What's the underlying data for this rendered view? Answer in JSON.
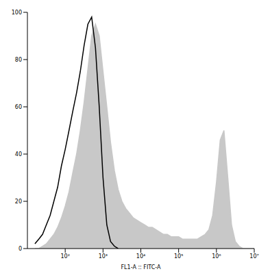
{
  "chart_data": {
    "type": "area",
    "x_label": "FL1-A :: FITC-A",
    "log": "x",
    "x": [
      15.8,
      20,
      25.1,
      31.6,
      39.8,
      50.1,
      63.1,
      79.4,
      100,
      126,
      158,
      200,
      251,
      316,
      398,
      501,
      631,
      794,
      1000,
      1260,
      1580,
      2000,
      2510,
      3160,
      3980,
      5010,
      6310,
      7940,
      10000,
      12600,
      15800,
      20000,
      25100,
      31600,
      39800,
      50100,
      63100,
      79400,
      100000,
      126000,
      158000,
      200000,
      251000,
      316000,
      398000,
      501000,
      631000,
      794000,
      1000000,
      1260000,
      1580000,
      2000000,
      2510000,
      3160000,
      3980000,
      5010000,
      6310000,
      7940000,
      10000000
    ],
    "series": [
      {
        "type": "area",
        "color": "#c8c8c8",
        "values": [
          0,
          0,
          1,
          2,
          4,
          6,
          9,
          13,
          18,
          24,
          32,
          40,
          50,
          62,
          76,
          90,
          95,
          90,
          75,
          60,
          45,
          33,
          25,
          20,
          17,
          15,
          13,
          12,
          11,
          10,
          9,
          9,
          8,
          7,
          6,
          6,
          5,
          5,
          5,
          4,
          4,
          4,
          4,
          4,
          5,
          6,
          8,
          14,
          28,
          46,
          50,
          30,
          10,
          3,
          1,
          0,
          0,
          0,
          0
        ]
      },
      {
        "type": "line",
        "color": "#000000",
        "values": [
          2,
          4,
          6,
          10,
          14,
          20,
          26,
          35,
          42,
          50,
          58,
          66,
          75,
          86,
          95,
          98,
          85,
          60,
          30,
          10,
          3,
          1,
          0,
          null,
          null,
          null,
          null,
          null,
          null,
          null,
          null,
          null,
          null,
          null,
          null,
          null,
          null,
          null,
          null,
          null,
          null,
          null,
          null,
          null,
          null,
          null,
          null,
          null,
          null,
          null,
          null,
          null,
          null,
          null,
          null,
          null,
          null,
          null,
          null
        ]
      }
    ],
    "xlim": [
      10,
      10000000
    ],
    "xticks": [
      {
        "value": 100,
        "label": "10²"
      },
      {
        "value": 1000,
        "label": "10³"
      },
      {
        "value": 10000,
        "label": "10⁴"
      },
      {
        "value": 100000,
        "label": "10⁵"
      },
      {
        "value": 1000000,
        "label": "10⁶"
      },
      {
        "value": 10000000,
        "label": "10⁷"
      }
    ],
    "ylim": [
      0,
      100
    ],
    "yticks": [
      0,
      20,
      40,
      60,
      80,
      100
    ]
  }
}
